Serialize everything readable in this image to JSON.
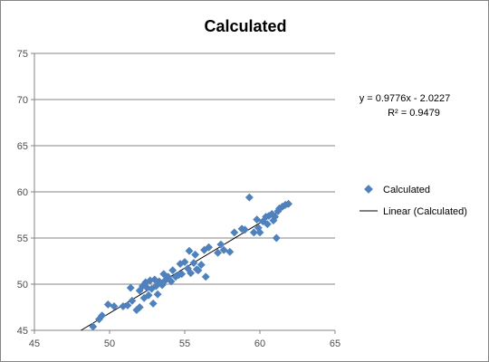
{
  "chart_data": {
    "type": "scatter",
    "title": "Calculated",
    "xlabel": "",
    "ylabel": "",
    "xlim": [
      45,
      65
    ],
    "ylim": [
      45,
      75
    ],
    "x_ticks": [
      45,
      50,
      55,
      60,
      65
    ],
    "y_ticks": [
      45,
      50,
      55,
      60,
      65,
      70,
      75
    ],
    "grid": "horizontal",
    "legend_position": "right",
    "series": [
      {
        "name": "Calculated",
        "color": "#4f81bd",
        "marker": "diamond",
        "points": [
          [
            48.9,
            45.4
          ],
          [
            49.3,
            46.2
          ],
          [
            49.5,
            46.6
          ],
          [
            49.9,
            47.8
          ],
          [
            50.3,
            47.6
          ],
          [
            50.9,
            47.6
          ],
          [
            51.2,
            47.7
          ],
          [
            51.4,
            49.6
          ],
          [
            51.5,
            48.2
          ],
          [
            51.8,
            47.2
          ],
          [
            52.0,
            47.5
          ],
          [
            52.0,
            49.3
          ],
          [
            52.2,
            49.8
          ],
          [
            52.3,
            48.5
          ],
          [
            52.4,
            50.2
          ],
          [
            52.5,
            49.6
          ],
          [
            52.6,
            48.8
          ],
          [
            52.7,
            50.4
          ],
          [
            52.8,
            49.5
          ],
          [
            52.9,
            47.9
          ],
          [
            53.0,
            50.5
          ],
          [
            53.1,
            49.8
          ],
          [
            53.2,
            48.9
          ],
          [
            53.3,
            50.3
          ],
          [
            53.5,
            49.9
          ],
          [
            53.6,
            51.1
          ],
          [
            53.7,
            50.4
          ],
          [
            53.9,
            50.8
          ],
          [
            54.1,
            50.3
          ],
          [
            54.2,
            51.5
          ],
          [
            54.4,
            50.8
          ],
          [
            54.6,
            51.0
          ],
          [
            54.7,
            52.2
          ],
          [
            54.8,
            51.1
          ],
          [
            55.0,
            52.4
          ],
          [
            55.2,
            51.7
          ],
          [
            55.3,
            53.6
          ],
          [
            55.4,
            51.2
          ],
          [
            55.6,
            52.3
          ],
          [
            55.7,
            53.2
          ],
          [
            55.8,
            51.6
          ],
          [
            55.9,
            51.5
          ],
          [
            56.1,
            52.1
          ],
          [
            56.3,
            53.7
          ],
          [
            56.4,
            50.8
          ],
          [
            56.6,
            54.0
          ],
          [
            57.2,
            53.4
          ],
          [
            57.4,
            54.3
          ],
          [
            57.6,
            53.7
          ],
          [
            58.0,
            53.5
          ],
          [
            58.3,
            55.6
          ],
          [
            58.8,
            56.0
          ],
          [
            59.0,
            55.9
          ],
          [
            59.3,
            59.4
          ],
          [
            59.6,
            55.6
          ],
          [
            59.8,
            57.0
          ],
          [
            59.9,
            56.1
          ],
          [
            60.0,
            55.6
          ],
          [
            60.2,
            56.8
          ],
          [
            60.4,
            57.3
          ],
          [
            60.5,
            56.5
          ],
          [
            60.6,
            57.4
          ],
          [
            60.8,
            57.6
          ],
          [
            60.9,
            56.9
          ],
          [
            61.0,
            57.3
          ],
          [
            61.1,
            55.0
          ],
          [
            61.2,
            57.9
          ],
          [
            61.3,
            58.2
          ],
          [
            61.5,
            58.4
          ],
          [
            61.7,
            58.6
          ],
          [
            61.9,
            58.7
          ]
        ]
      }
    ],
    "trendline": {
      "name": "Linear (Calculated)",
      "color": "#000000",
      "slope": 0.9776,
      "intercept": -2.0227,
      "x_range": [
        48.1,
        61.9
      ],
      "equation": "y = 0.9776x - 2.0227",
      "r_squared": "R² = 0.9479"
    }
  }
}
